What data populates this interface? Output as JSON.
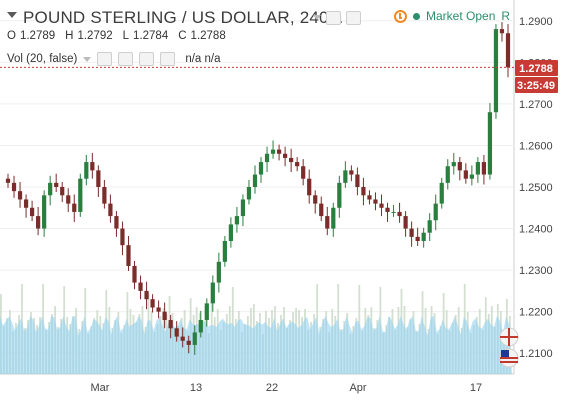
{
  "header": {
    "symbol_title": "POUND STERLING / US DOLLAR, 240...",
    "ohlc": [
      {
        "k": "O",
        "v": "1.2789"
      },
      {
        "k": "H",
        "v": "1.2792"
      },
      {
        "k": "L",
        "v": "1.2784"
      },
      {
        "k": "C",
        "v": "1.2788"
      }
    ],
    "indicator_label": "Vol (20, false)",
    "indicator_values": "n/a n/a",
    "market_status": "Market Open",
    "market_suffix": "R",
    "market_badge_icon": "clock-icon"
  },
  "price_axis": {
    "ticks": [
      "1.2900",
      "1.2800",
      "1.2700",
      "1.2600",
      "1.2500",
      "1.2400",
      "1.2300",
      "1.2200",
      "1.2100"
    ],
    "last_price": "1.2788",
    "countdown": "3:25:49"
  },
  "time_axis": {
    "labels": [
      "Mar",
      "13",
      "22",
      "Apr",
      "17"
    ]
  },
  "colors": {
    "up": "#2a7f3f",
    "down": "#7a2d2a",
    "last_price_bg": "#c83b35",
    "ma_fill": "#8ed0f2",
    "vol_bar": "#c8d8c6"
  },
  "chart_data": {
    "type": "candlestick",
    "ylim": [
      1.205,
      1.295
    ],
    "last": 1.2788,
    "x_labels": [
      "Mar",
      "13",
      "22",
      "Apr",
      "17"
    ],
    "closes": [
      1.251,
      1.249,
      1.247,
      1.245,
      1.243,
      1.24,
      1.248,
      1.251,
      1.25,
      1.248,
      1.246,
      1.244,
      1.252,
      1.256,
      1.254,
      1.25,
      1.246,
      1.243,
      1.24,
      1.236,
      1.231,
      1.227,
      1.225,
      1.223,
      1.221,
      1.22,
      1.218,
      1.216,
      1.214,
      1.213,
      1.212,
      1.215,
      1.218,
      1.222,
      1.227,
      1.232,
      1.237,
      1.241,
      1.243,
      1.247,
      1.25,
      1.253,
      1.256,
      1.258,
      1.259,
      1.258,
      1.257,
      1.256,
      1.255,
      1.252,
      1.248,
      1.246,
      1.243,
      1.24,
      1.245,
      1.251,
      1.254,
      1.253,
      1.25,
      1.248,
      1.247,
      1.246,
      1.245,
      1.244,
      1.244,
      1.243,
      1.24,
      1.238,
      1.237,
      1.239,
      1.242,
      1.246,
      1.251,
      1.255,
      1.256,
      1.254,
      1.252,
      1.253,
      1.256,
      1.253,
      1.268,
      1.288,
      1.287,
      1.2788
    ]
  }
}
